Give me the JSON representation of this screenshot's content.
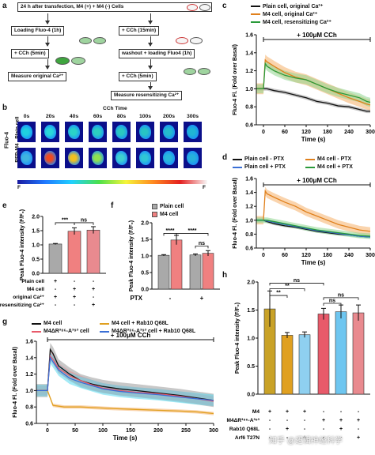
{
  "panel_letters": [
    "a",
    "b",
    "c",
    "d",
    "e",
    "f",
    "g",
    "h"
  ],
  "flowchart": {
    "start": "24 h after transfection, M4 (+) + M4 (-) Cells",
    "left_steps": [
      "Loading Fluo-4 (1h)",
      "+ CCh (5min)",
      "Measure original Ca²⁺"
    ],
    "right_steps": [
      "+ CCh (15min)",
      "washout + loading Fluo4 (1h)",
      "+ CCh (5min)",
      "Measure resensitizing Ca²⁺"
    ]
  },
  "imaging": {
    "title": "CCh Time",
    "time_labels": [
      "0s",
      "20s",
      "40s",
      "60s",
      "80s",
      "100s",
      "200s",
      "300s"
    ],
    "row_labels": [
      "Plain cell",
      "RFP-M4"
    ],
    "side_label": "Fluo-4",
    "colorbar_low": "F",
    "colorbar_high": "F"
  },
  "colors": {
    "black": "#111111",
    "orange": "#e0801c",
    "green": "#2a9a3a",
    "blue": "#3a6fd6",
    "pink": "#e85a6a",
    "gray_bar": "#a9a9a9",
    "red_bar": "#f08080",
    "rose": "#e98a8f",
    "gold": "#c9a227",
    "mustard": "#e0a020",
    "light_blue": "#8fd0f0",
    "sky": "#6ec6f0",
    "orange_band": "#f5b06a",
    "green_band": "#8fd68f",
    "blue_band": "#5ad8ee",
    "black_band": "#9a9a9a"
  },
  "chart_data": [
    {
      "id": "c",
      "type": "line",
      "ylabel": "Fluo-4 Fl. (Fold over Basal)",
      "xlabel": "Time (s)",
      "xlim": [
        -20,
        300
      ],
      "ylim": [
        0.6,
        1.6
      ],
      "xticks": [
        0,
        60,
        120,
        180,
        240,
        300
      ],
      "yticks": [
        0.6,
        0.8,
        1.0,
        1.2,
        1.4,
        1.6
      ],
      "annotation": "+ 100μM CCh",
      "series": [
        {
          "name": "Plain cell, original Ca²⁺",
          "color": "black",
          "x": [
            -20,
            -10,
            0,
            10,
            30,
            60,
            90,
            120,
            150,
            180,
            210,
            240,
            270,
            290,
            300
          ],
          "y": [
            1.0,
            1.0,
            1.0,
            1.0,
            0.98,
            0.96,
            0.93,
            0.9,
            0.86,
            0.84,
            0.81,
            0.8,
            0.77,
            0.75,
            0.75
          ],
          "err": 0.02
        },
        {
          "name": "M4 cell, original Ca²⁺",
          "color": "orange",
          "x": [
            -20,
            -10,
            0,
            5,
            10,
            30,
            60,
            90,
            120,
            150,
            180,
            210,
            240,
            270,
            290,
            300
          ],
          "y": [
            1.0,
            1.0,
            1.0,
            1.32,
            1.3,
            1.25,
            1.18,
            1.13,
            1.1,
            1.05,
            1.0,
            0.95,
            0.9,
            0.86,
            0.83,
            0.82
          ],
          "err": 0.06
        },
        {
          "name": "M4 cell, resensitizing Ca²⁺",
          "color": "green",
          "x": [
            -20,
            -10,
            0,
            5,
            10,
            30,
            60,
            90,
            120,
            150,
            180,
            210,
            240,
            270,
            290,
            300
          ],
          "y": [
            1.0,
            1.0,
            1.0,
            1.28,
            1.25,
            1.2,
            1.15,
            1.12,
            1.1,
            1.05,
            1.0,
            0.96,
            0.93,
            0.9,
            0.86,
            0.85
          ],
          "err": 0.05
        }
      ]
    },
    {
      "id": "d",
      "type": "line",
      "ylabel": "Fluo-4 Fl. (Fold over Basal)",
      "xlabel": "Time (s)",
      "xlim": [
        -20,
        300
      ],
      "ylim": [
        0.6,
        1.6
      ],
      "xticks": [
        0,
        60,
        120,
        180,
        240,
        300
      ],
      "yticks": [
        0.6,
        0.8,
        1.0,
        1.2,
        1.4,
        1.6
      ],
      "annotation": "+ 100μM CCh",
      "series": [
        {
          "name": "Plain cell - PTX",
          "color": "black",
          "x": [
            -20,
            -10,
            0,
            10,
            30,
            60,
            90,
            120,
            150,
            180,
            210,
            240,
            270,
            300
          ],
          "y": [
            1.0,
            1.0,
            1.0,
            0.98,
            0.95,
            0.92,
            0.9,
            0.87,
            0.84,
            0.82,
            0.8,
            0.79,
            0.77,
            0.76
          ],
          "err": 0.02
        },
        {
          "name": "M4 cell - PTX",
          "color": "orange",
          "x": [
            -20,
            -10,
            0,
            5,
            10,
            30,
            60,
            90,
            120,
            150,
            180,
            210,
            240,
            270,
            300
          ],
          "y": [
            1.0,
            1.0,
            1.0,
            1.42,
            1.38,
            1.33,
            1.26,
            1.2,
            1.12,
            1.06,
            1.0,
            0.94,
            0.9,
            0.86,
            0.84
          ],
          "err": 0.06
        },
        {
          "name": "Plain cell + PTX",
          "color": "blue",
          "x": [
            -20,
            -10,
            0,
            10,
            30,
            60,
            90,
            120,
            150,
            180,
            210,
            240,
            270,
            300
          ],
          "y": [
            1.0,
            1.0,
            1.0,
            0.99,
            0.97,
            0.94,
            0.91,
            0.88,
            0.85,
            0.83,
            0.81,
            0.79,
            0.77,
            0.76
          ],
          "err": 0.02
        },
        {
          "name": "M4 cell + PTX",
          "color": "green",
          "x": [
            -20,
            -10,
            0,
            10,
            30,
            60,
            90,
            120,
            150,
            180,
            210,
            240,
            270,
            300
          ],
          "y": [
            1.0,
            1.0,
            1.0,
            1.0,
            0.98,
            0.95,
            0.92,
            0.89,
            0.86,
            0.84,
            0.82,
            0.8,
            0.78,
            0.77
          ],
          "err": 0.04
        }
      ]
    },
    {
      "id": "e",
      "type": "bar",
      "ylabel": "Peak Fluo-4 intensity (F/F₀)",
      "ylim": [
        0,
        2.0
      ],
      "yticks": [
        0,
        0.5,
        1.0,
        1.5,
        2.0
      ],
      "categories": [
        "bar1",
        "bar2",
        "bar3"
      ],
      "values": [
        1.03,
        1.48,
        1.52
      ],
      "errors": [
        0.02,
        0.12,
        0.12
      ],
      "bar_colors": [
        "gray_bar",
        "red_bar",
        "rose"
      ],
      "significance": [
        {
          "from": 0,
          "to": 1,
          "label": "***"
        },
        {
          "from": 1,
          "to": 2,
          "label": "ns"
        }
      ],
      "table": {
        "rows": [
          "Plain cell",
          "M4 cell",
          "original Ca²⁺",
          "resensitizing Ca²⁺"
        ],
        "values": [
          [
            "+",
            "-",
            "-"
          ],
          [
            "-",
            "+",
            "+"
          ],
          [
            "+",
            "+",
            "-"
          ],
          [
            "-",
            "-",
            "+"
          ]
        ]
      }
    },
    {
      "id": "f",
      "type": "bar",
      "ylabel": "Peak Fluo-4 intensity (F/F₀)",
      "ylim": [
        0,
        2.0
      ],
      "yticks": [
        0,
        0.5,
        1.0,
        1.5,
        2.0
      ],
      "legend": [
        {
          "name": "Plain cell",
          "color": "gray_bar"
        },
        {
          "name": "M4 cell",
          "color": "red_bar"
        }
      ],
      "groups": [
        "-",
        "+"
      ],
      "group_axis_label": "PTX",
      "series": [
        {
          "name": "Plain cell",
          "values": [
            1.02,
            1.03
          ],
          "errors": [
            0.02,
            0.03
          ]
        },
        {
          "name": "M4 cell",
          "values": [
            1.48,
            1.08
          ],
          "errors": [
            0.14,
            0.08
          ]
        }
      ],
      "significance": [
        {
          "label": "****",
          "level": 1.65,
          "span": "within-1"
        },
        {
          "label": "****",
          "level": 1.65,
          "span": "across"
        },
        {
          "label": "ns",
          "level": 1.3,
          "span": "within-2"
        }
      ]
    },
    {
      "id": "g",
      "type": "line",
      "ylabel": "Fluo-4 Fl. (Fold over Basal)",
      "xlabel": "Time (s)",
      "xlim": [
        -20,
        300
      ],
      "ylim": [
        0.6,
        1.6
      ],
      "xticks": [
        0,
        50,
        100,
        150,
        200,
        250,
        300
      ],
      "yticks": [
        0.6,
        0.8,
        1.0,
        1.2,
        1.4,
        1.6
      ],
      "annotation": "+ 100μM CCh",
      "series": [
        {
          "name": "M4 cell",
          "color": "black",
          "x": [
            -20,
            -10,
            0,
            5,
            10,
            20,
            40,
            60,
            80,
            100,
            130,
            160,
            200,
            240,
            270,
            300
          ],
          "y": [
            1.0,
            1.0,
            1.0,
            1.5,
            1.45,
            1.3,
            1.2,
            1.12,
            1.08,
            1.05,
            1.02,
            1.0,
            0.97,
            0.94,
            0.91,
            0.88
          ],
          "err": 0.08
        },
        {
          "name": "M4 cell + Rab10 Q68L",
          "color": "mustard",
          "x": [
            -20,
            -10,
            0,
            10,
            30,
            60,
            90,
            120,
            160,
            200,
            240,
            270,
            300
          ],
          "y": [
            1.0,
            1.0,
            1.0,
            0.82,
            0.8,
            0.8,
            0.79,
            0.78,
            0.77,
            0.76,
            0.75,
            0.74,
            0.72
          ],
          "err": 0.02
        },
        {
          "name": "M4ΔR³⁸⁶-A³⁹³ cell",
          "color": "pink",
          "x": [
            -20,
            -10,
            0,
            5,
            10,
            20,
            40,
            60,
            80,
            100,
            130,
            160,
            200,
            240,
            270,
            300
          ],
          "y": [
            1.0,
            1.0,
            1.0,
            1.42,
            1.38,
            1.27,
            1.18,
            1.12,
            1.07,
            1.03,
            1.0,
            0.98,
            0.96,
            0.93,
            0.9,
            0.87
          ],
          "err": 0.06
        },
        {
          "name": "M4ΔR³⁸⁶-A³⁹³ cell + Rab10 Q68L",
          "color": "blue",
          "x": [
            -20,
            -10,
            0,
            5,
            10,
            20,
            40,
            60,
            80,
            100,
            130,
            160,
            200,
            240,
            270,
            300
          ],
          "y": [
            1.0,
            1.0,
            1.0,
            1.4,
            1.35,
            1.25,
            1.15,
            1.1,
            1.06,
            1.02,
            0.99,
            0.97,
            0.95,
            0.92,
            0.9,
            0.88
          ],
          "err": 0.07
        }
      ]
    },
    {
      "id": "h",
      "type": "bar",
      "ylabel": "Peak Fluo-4 intensity (F/F₀)",
      "ylim": [
        0,
        2.0
      ],
      "yticks": [
        0,
        0.5,
        1.0,
        1.5,
        2.0
      ],
      "values": [
        1.52,
        1.05,
        1.06,
        1.43,
        1.47,
        1.45
      ],
      "errors": [
        0.32,
        0.05,
        0.05,
        0.1,
        0.12,
        0.14
      ],
      "bar_colors": [
        "gold",
        "mustard",
        "light_blue",
        "pink",
        "sky",
        "rose"
      ],
      "significance": [
        {
          "from": 0,
          "to": 3,
          "label": "ns",
          "level": 1.98
        },
        {
          "from": 0,
          "to": 2,
          "label": "**",
          "level": 1.88
        },
        {
          "from": 0,
          "to": 1,
          "label": "**",
          "level": 1.76
        },
        {
          "from": 3,
          "to": 5,
          "label": "ns",
          "level": 1.72
        },
        {
          "from": 3,
          "to": 4,
          "label": "ns",
          "level": 1.62
        }
      ],
      "table": {
        "rows": [
          "M4",
          "M4ΔR³⁸⁶-A³⁹³",
          "Rab10 Q68L",
          "Arf6 T27N"
        ],
        "values": [
          [
            "+",
            "+",
            "+",
            "-",
            "-",
            "-"
          ],
          [
            "-",
            "-",
            "-",
            "+",
            "+",
            "+"
          ],
          [
            "-",
            "+",
            "-",
            "-",
            "+",
            "-"
          ],
          [
            "-",
            "-",
            "+",
            "-",
            "-",
            "+"
          ]
        ]
      }
    }
  ],
  "watermark": "知乎 @逻辑神经科学"
}
